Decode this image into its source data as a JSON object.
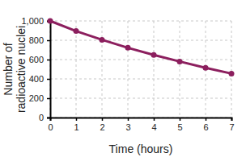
{
  "chart_data": {
    "type": "line",
    "x_label": "Time (hours)",
    "y_label": "Number of radioactive nuclei",
    "x": [
      0,
      1,
      2,
      3,
      4,
      5,
      6,
      7
    ],
    "values": [
      1000,
      895,
      805,
      722,
      648,
      580,
      515,
      455
    ],
    "color": "#8c1f5e",
    "marker": "circle",
    "xlim": [
      0,
      7
    ],
    "xticks": [
      0,
      1,
      2,
      3,
      4,
      5,
      6,
      7
    ],
    "ylim": [
      0,
      1000
    ],
    "yticks": [
      0,
      200,
      400,
      600,
      800,
      {
        "value": 1000,
        "label": "1,000"
      }
    ],
    "grid": true
  }
}
